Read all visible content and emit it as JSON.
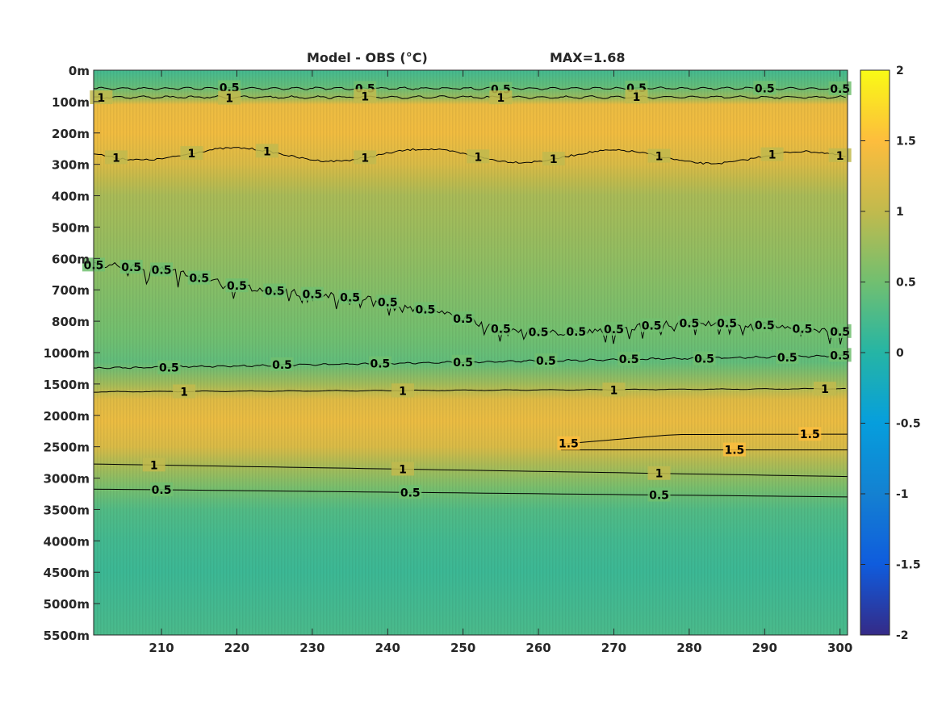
{
  "chart_data": {
    "type": "heatmap",
    "title": "Model - OBS",
    "title_unit": "(°C)",
    "max_label": "MAX=1.68",
    "xlim": [
      201,
      301
    ],
    "x_ticks": [
      "210",
      "220",
      "230",
      "240",
      "250",
      "260",
      "270",
      "280",
      "290",
      "300"
    ],
    "y_ticks": [
      "0m",
      "100m",
      "200m",
      "300m",
      "400m",
      "500m",
      "600m",
      "700m",
      "800m",
      "1000m",
      "1500m",
      "2000m",
      "2500m",
      "3000m",
      "3500m",
      "4000m",
      "4500m",
      "5000m",
      "5500m"
    ],
    "colorbar": {
      "colormap": "parula",
      "clim": [
        -2,
        2
      ],
      "ticks": [
        "2",
        "1.5",
        "1",
        "0.5",
        "0",
        "-0.5",
        "-1",
        "-1.5",
        "-2"
      ]
    },
    "depth_profile_index_units": {
      "depths": [
        0,
        0.5,
        0.9,
        1.1,
        2,
        3,
        3.5,
        4,
        6,
        8.5,
        9.3,
        10,
        10.5,
        11.2,
        12,
        12.5,
        13.3,
        14,
        15,
        16,
        18
      ],
      "values": [
        0.2,
        0.4,
        0.8,
        1.35,
        1.4,
        1.2,
        1.0,
        0.85,
        0.7,
        0.5,
        0.4,
        0.8,
        1.25,
        1.35,
        1.2,
        0.9,
        0.55,
        0.3,
        0.2,
        0.15,
        0.25
      ]
    },
    "contours": [
      {
        "level": "0.5",
        "label_x": [
          219,
          237,
          255,
          273,
          290,
          305
        ]
      },
      {
        "level": "1",
        "label_x": [
          202,
          219,
          237,
          255,
          273
        ]
      },
      {
        "level": "1",
        "label_x": [
          204,
          214,
          224,
          237,
          252,
          262,
          276,
          291,
          300
        ]
      },
      {
        "level": "0.5",
        "label_x": [
          201,
          206,
          210,
          215,
          220,
          225,
          230,
          235,
          240,
          245,
          250,
          255,
          260,
          265,
          270,
          275,
          280,
          285,
          290,
          295,
          300
        ]
      },
      {
        "level": "0.5",
        "label_x": [
          211,
          226,
          239,
          250,
          261,
          272,
          282,
          293,
          300
        ]
      },
      {
        "level": "1",
        "label_x": [
          213,
          242,
          270,
          298
        ]
      },
      {
        "level": "1.5",
        "label_x": [
          264,
          296
        ]
      },
      {
        "level": "1.5",
        "label_x": [
          286
        ]
      },
      {
        "level": "1",
        "label_x": [
          209,
          242,
          276
        ]
      },
      {
        "level": "0.5",
        "label_x": [
          210,
          243,
          276
        ]
      }
    ]
  }
}
